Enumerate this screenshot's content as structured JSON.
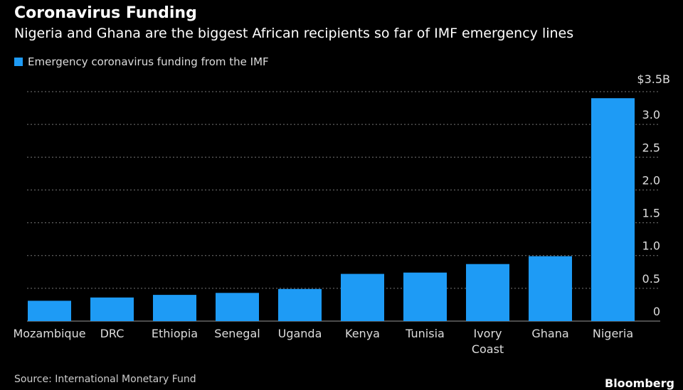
{
  "chart_data": {
    "type": "bar",
    "title": "Coronavirus Funding",
    "subtitle": "Nigeria and Ghana are the biggest African recipients so far of IMF emergency lines",
    "series": [
      {
        "name": "Emergency coronavirus funding from the IMF",
        "color": "#1e9bf5",
        "values": [
          0.31,
          0.36,
          0.4,
          0.43,
          0.49,
          0.72,
          0.74,
          0.87,
          0.99,
          3.4
        ]
      }
    ],
    "categories": [
      "Mozambique",
      "DRC",
      "Ethiopia",
      "Senegal",
      "Uganda",
      "Kenya",
      "Tunisia",
      "Ivory Coast",
      "Ghana",
      "Nigeria"
    ],
    "y_ticks": [
      {
        "value": 0,
        "label": "0"
      },
      {
        "value": 0.5,
        "label": "0.5"
      },
      {
        "value": 1.0,
        "label": "1.0"
      },
      {
        "value": 1.5,
        "label": "1.5"
      },
      {
        "value": 2.0,
        "label": "2.0"
      },
      {
        "value": 2.5,
        "label": "2.5"
      },
      {
        "value": 3.0,
        "label": "3.0"
      },
      {
        "value": 3.5,
        "label": "$3.5B"
      }
    ],
    "ylim": [
      0,
      3.5
    ],
    "xlabel": "",
    "ylabel": "",
    "grid": true,
    "legend_position": "top-left"
  },
  "footer": {
    "source": "Source: International Monetary Fund",
    "brand": "Bloomberg"
  }
}
